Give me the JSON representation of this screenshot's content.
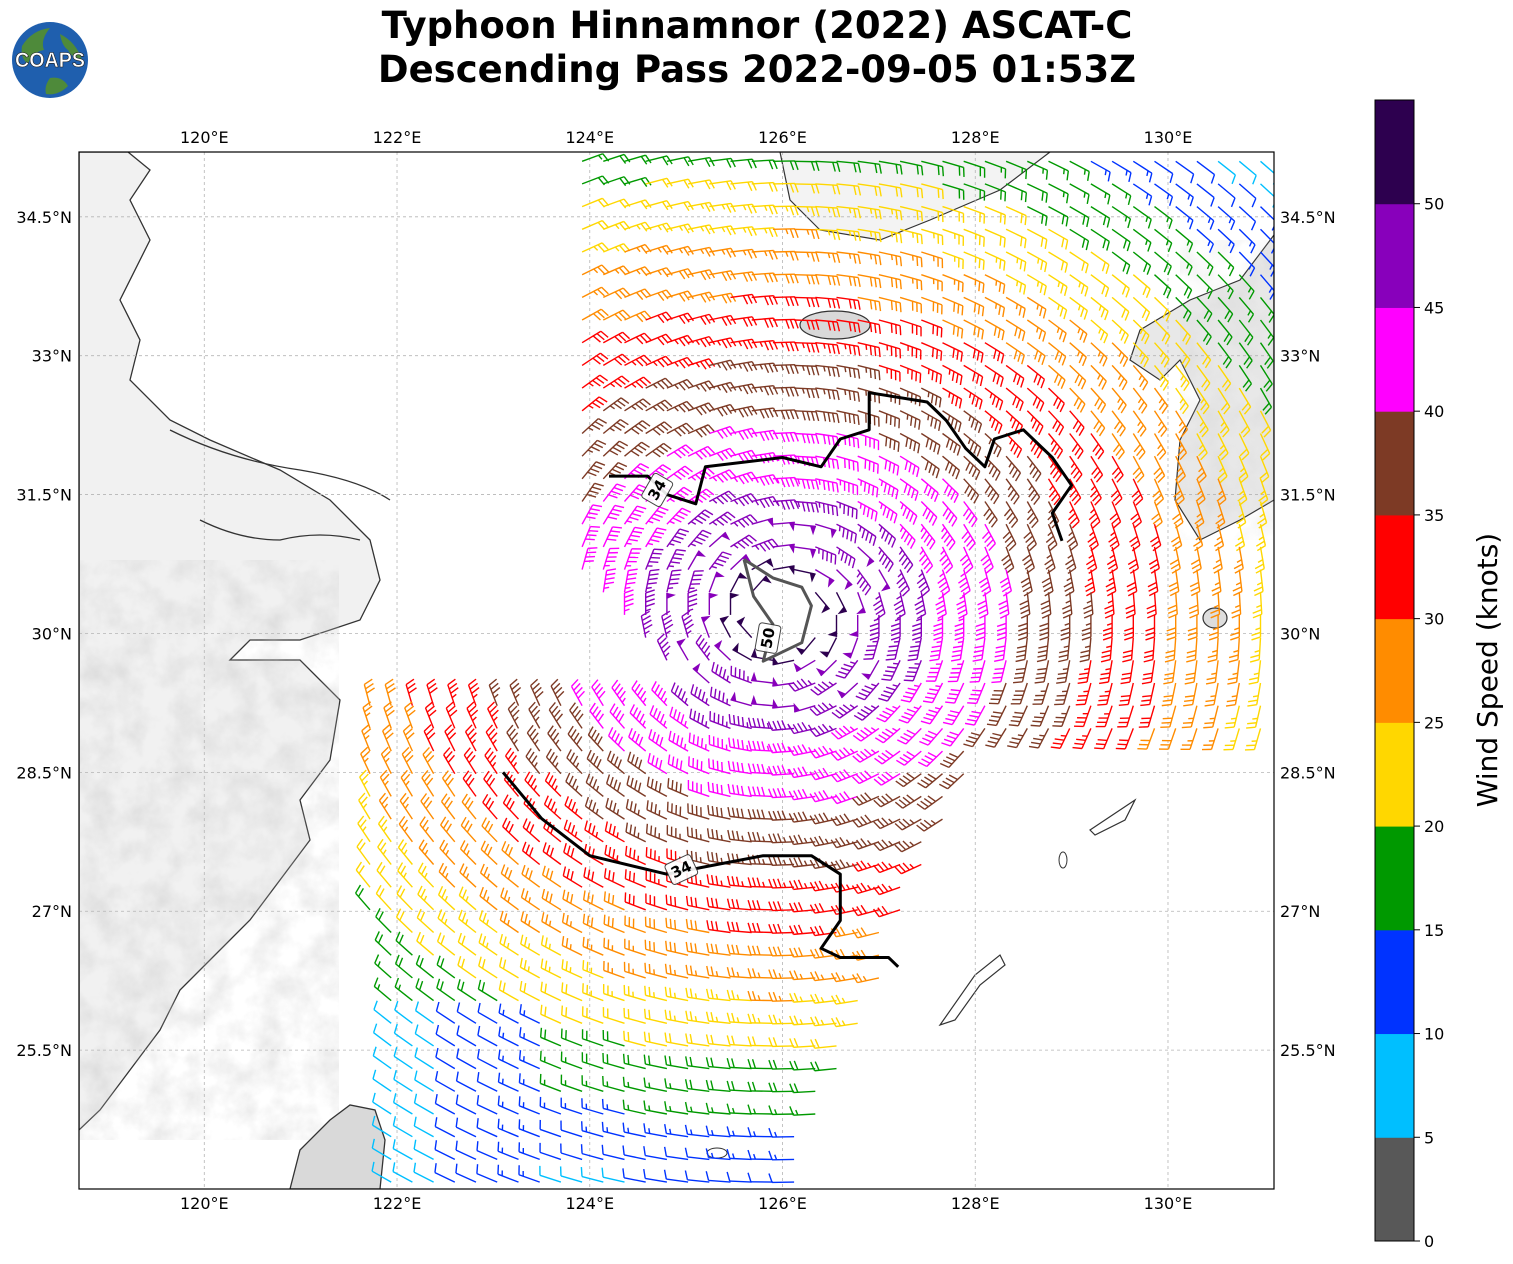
{
  "title": {
    "line1": "Typhoon Hinnamnor (2022) ASCAT-C",
    "line2": "Descending Pass 2022-09-05 01:53Z"
  },
  "logo": {
    "text": "COAPS",
    "ocean_color": "#1f5fae",
    "land_color": "#4e8a3a"
  },
  "map": {
    "lon_range": [
      118.7,
      131.1
    ],
    "lat_range": [
      24.0,
      35.2
    ],
    "lon_ticks": [
      {
        "value": 120,
        "label": "120°E"
      },
      {
        "value": 122,
        "label": "122°E"
      },
      {
        "value": 124,
        "label": "124°E"
      },
      {
        "value": 126,
        "label": "126°E"
      },
      {
        "value": 128,
        "label": "128°E"
      },
      {
        "value": 130,
        "label": "130°E"
      }
    ],
    "lat_ticks": [
      {
        "value": 25.5,
        "label": "25.5°N"
      },
      {
        "value": 27,
        "label": "27°N"
      },
      {
        "value": 28.5,
        "label": "28.5°N"
      },
      {
        "value": 30,
        "label": "30°N"
      },
      {
        "value": 31.5,
        "label": "31.5°N"
      },
      {
        "value": 33,
        "label": "33°N"
      },
      {
        "value": 34.5,
        "label": "34.5°N"
      }
    ],
    "grid": true,
    "center": {
      "lon": 126.0,
      "lat": 30.2
    },
    "contours": [
      {
        "label": "34",
        "color": "#000000"
      },
      {
        "label": "50",
        "color": "#555555"
      },
      {
        "label": "34",
        "color": "#000000"
      }
    ]
  },
  "colorbar": {
    "label": "Wind Speed (knots)",
    "ticks": [
      "0",
      "5",
      "10",
      "15",
      "20",
      "25",
      "30",
      "35",
      "40",
      "45",
      "50"
    ],
    "bins": [
      {
        "min": 0,
        "max": 5,
        "color": "#585858"
      },
      {
        "min": 5,
        "max": 10,
        "color": "#00bfff"
      },
      {
        "min": 10,
        "max": 15,
        "color": "#0033ff"
      },
      {
        "min": 15,
        "max": 20,
        "color": "#009900"
      },
      {
        "min": 20,
        "max": 25,
        "color": "#ffd700"
      },
      {
        "min": 25,
        "max": 30,
        "color": "#ff8c00"
      },
      {
        "min": 30,
        "max": 35,
        "color": "#ff0000"
      },
      {
        "min": 35,
        "max": 40,
        "color": "#7d3a25"
      },
      {
        "min": 40,
        "max": 45,
        "color": "#ff00ff"
      },
      {
        "min": 45,
        "max": 50,
        "color": "#8800bb"
      },
      {
        "min": 50,
        "max": 55,
        "color": "#2d004f"
      }
    ]
  }
}
